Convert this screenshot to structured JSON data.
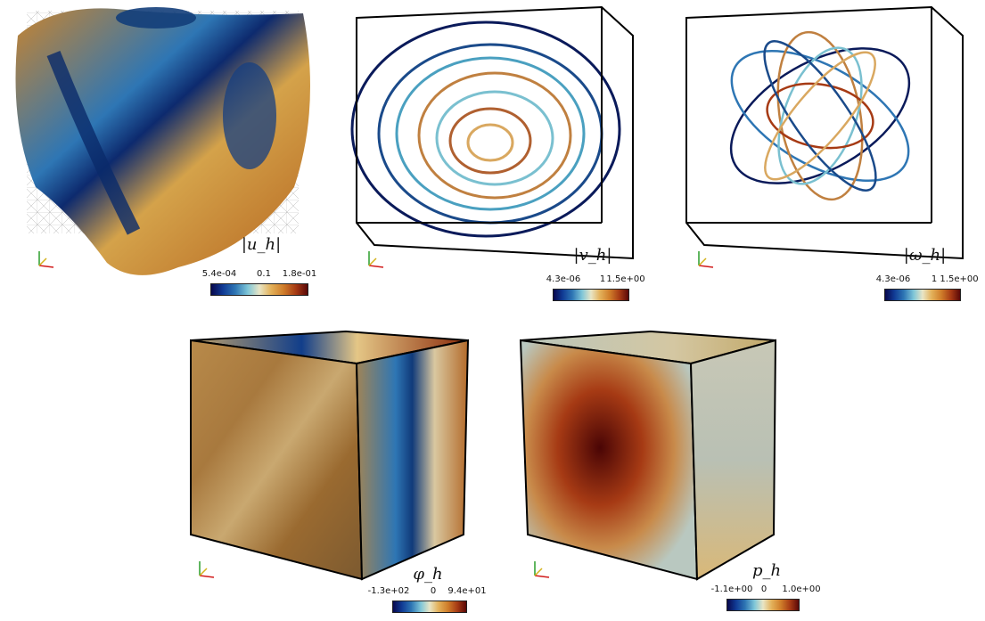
{
  "panels": [
    {
      "id": "u",
      "title": "|u_h|",
      "ticks": [
        "5.4e-04",
        "0.1",
        "1.8e-01"
      ]
    },
    {
      "id": "v",
      "title": "|v_h|",
      "ticks": [
        "4.3e-06",
        "1",
        "1.5e+00"
      ]
    },
    {
      "id": "w",
      "title": "|ω_h|",
      "ticks": [
        "4.3e-06",
        "1",
        "1.5e+00"
      ]
    },
    {
      "id": "phi",
      "title": "φ_h",
      "ticks": [
        "-1.3e+02",
        "0",
        "9.4e+01"
      ]
    },
    {
      "id": "p",
      "title": "p_h",
      "ticks": [
        "-1.1e+00",
        "0",
        "1.0e+00"
      ]
    }
  ],
  "axis_triad": {
    "labels": [
      "z",
      "y",
      "x"
    ],
    "colors": [
      "#2a9d2a",
      "#d4b21a",
      "#d11a1a"
    ]
  },
  "colormap": [
    "#08084e",
    "#2e76b4",
    "#e8e5c6",
    "#cf7d2a",
    "#5a0808"
  ]
}
